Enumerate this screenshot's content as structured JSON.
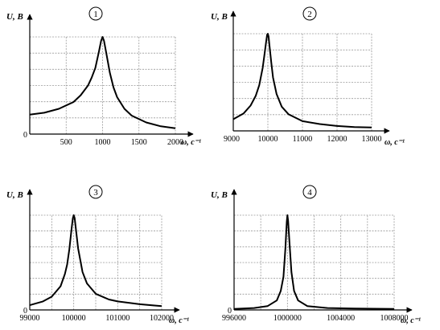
{
  "chart_data": [
    {
      "type": "line",
      "badge": "1",
      "ylabel": "U, В",
      "xlabel": "ω, с⁻¹",
      "origin_label": "0",
      "x_ticks": [
        "500",
        "1000",
        "1500",
        "2000"
      ],
      "xlim": [
        0,
        2000
      ],
      "resonance": 1000,
      "grid_x": [
        0,
        500,
        1000,
        1500,
        2000
      ],
      "grid_rows": 6,
      "x": [
        0,
        200,
        400,
        600,
        700,
        800,
        850,
        900,
        950,
        980,
        1000,
        1020,
        1050,
        1100,
        1150,
        1200,
        1300,
        1400,
        1600,
        1800,
        2000
      ],
      "y": [
        0.2,
        0.22,
        0.26,
        0.33,
        0.4,
        0.5,
        0.58,
        0.68,
        0.85,
        0.96,
        1.0,
        0.96,
        0.84,
        0.63,
        0.48,
        0.38,
        0.26,
        0.19,
        0.12,
        0.08,
        0.06
      ]
    },
    {
      "type": "line",
      "badge": "2",
      "ylabel": "U, В",
      "xlabel": "ω, с⁻¹",
      "origin_label": "9000",
      "x_ticks": [
        "10000",
        "11000",
        "12000",
        "13000"
      ],
      "xlim": [
        9000,
        13000
      ],
      "resonance": 10000,
      "grid_x": [
        9000,
        10000,
        11000,
        12000,
        13000
      ],
      "grid_rows": 6,
      "x": [
        9000,
        9300,
        9500,
        9650,
        9750,
        9850,
        9900,
        9950,
        9980,
        10000,
        10020,
        10050,
        10100,
        10150,
        10250,
        10400,
        10600,
        11000,
        11500,
        12000,
        12500,
        13000
      ],
      "y": [
        0.12,
        0.18,
        0.26,
        0.36,
        0.47,
        0.65,
        0.78,
        0.92,
        0.99,
        1.0,
        0.97,
        0.87,
        0.7,
        0.55,
        0.38,
        0.25,
        0.17,
        0.1,
        0.07,
        0.05,
        0.04,
        0.035
      ]
    },
    {
      "type": "line",
      "badge": "3",
      "ylabel": "U, В",
      "xlabel": "ω, с⁻¹",
      "origin_label": "0",
      "x_ticks": [
        "99000",
        "100000",
        "101000",
        "102000"
      ],
      "xlim": [
        99000,
        102000
      ],
      "resonance": 100000,
      "grid_x": [
        99000,
        99500,
        100000,
        100500,
        101000,
        101500,
        102000
      ],
      "grid_rows": 6,
      "x": [
        99000,
        99300,
        99500,
        99700,
        99800,
        99850,
        99900,
        99950,
        99980,
        100000,
        100020,
        100050,
        100100,
        100200,
        100300,
        100500,
        100800,
        101000,
        101500,
        102000
      ],
      "y": [
        0.05,
        0.09,
        0.14,
        0.25,
        0.38,
        0.48,
        0.64,
        0.85,
        0.97,
        1.0,
        0.97,
        0.85,
        0.65,
        0.4,
        0.28,
        0.17,
        0.11,
        0.09,
        0.06,
        0.04
      ]
    },
    {
      "type": "line",
      "badge": "4",
      "ylabel": "U, В",
      "xlabel": "ω, с⁻¹",
      "origin_label": "0",
      "x_ticks": [
        "996000",
        "1000000",
        "1004000",
        "1008000"
      ],
      "xlim": [
        996000,
        1008000
      ],
      "resonance": 1000000,
      "grid_x": [
        996000,
        998000,
        1000000,
        1002000,
        1004000,
        1006000,
        1008000
      ],
      "grid_rows": 6,
      "x": [
        996000,
        997500,
        998500,
        999200,
        999500,
        999700,
        999850,
        999950,
        1000000,
        1000050,
        1000150,
        1000300,
        1000500,
        1000800,
        1001500,
        1003000,
        1005000,
        1008000
      ],
      "y": [
        0.01,
        0.02,
        0.04,
        0.1,
        0.2,
        0.35,
        0.65,
        0.93,
        1.0,
        0.94,
        0.72,
        0.4,
        0.2,
        0.1,
        0.04,
        0.02,
        0.015,
        0.01
      ]
    }
  ]
}
